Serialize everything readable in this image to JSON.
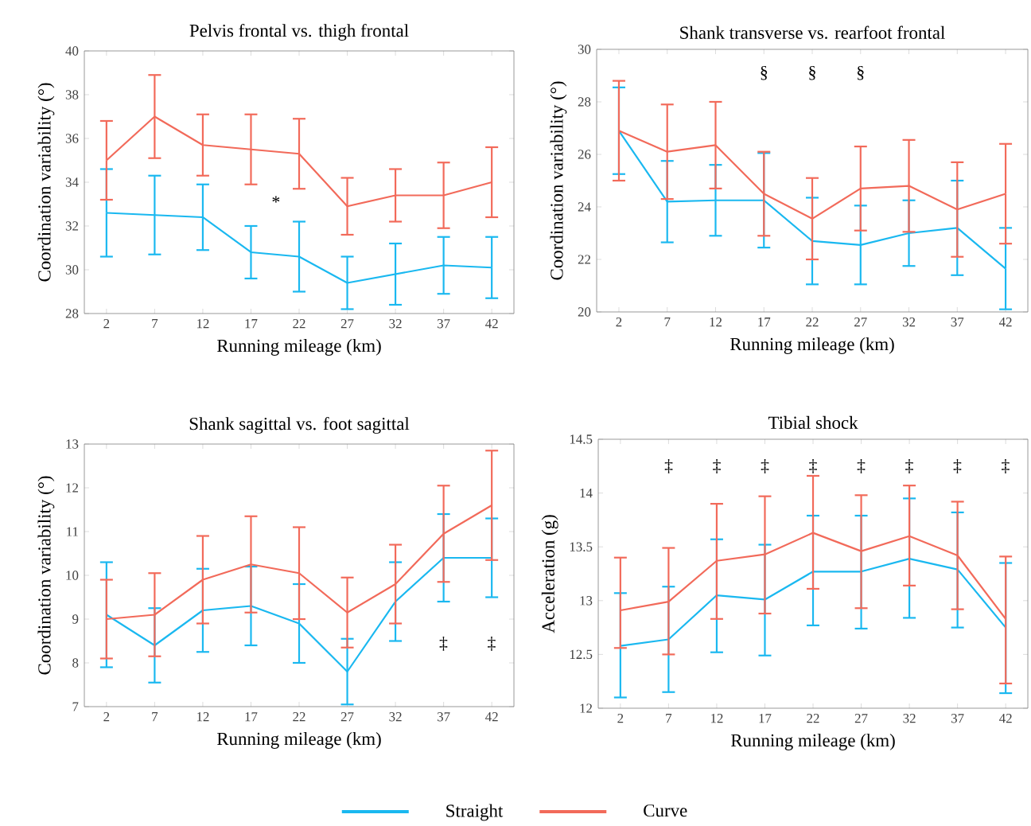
{
  "chart_data": [
    {
      "type": "line",
      "title": "Pelvis frontal vs. thigh frontal",
      "xlabel": "Running mileage (km)",
      "ylabel": "Coordination variability (°)",
      "x": [
        2,
        7,
        12,
        17,
        22,
        27,
        32,
        37,
        42
      ],
      "xlim": [
        -0.3,
        44.3
      ],
      "xticks": [
        2,
        7,
        12,
        17,
        22,
        27,
        32,
        37,
        42
      ],
      "ylim": [
        28,
        40
      ],
      "yticks": [
        28,
        30,
        32,
        34,
        36,
        38,
        40
      ],
      "series": [
        {
          "color": "#1ab8f0",
          "values": [
            32.6,
            32.5,
            32.4,
            30.8,
            30.6,
            29.4,
            29.8,
            30.2,
            30.1
          ],
          "errors": [
            2.0,
            1.8,
            1.5,
            1.2,
            1.6,
            1.2,
            1.4,
            1.3,
            1.4
          ]
        },
        {
          "color": "#f26a5a",
          "values": [
            35.0,
            37.0,
            35.7,
            35.5,
            35.3,
            32.9,
            33.4,
            33.4,
            34.0
          ],
          "errors": [
            1.8,
            1.9,
            1.4,
            1.6,
            1.6,
            1.3,
            1.2,
            1.5,
            1.6
          ]
        }
      ],
      "annotations": [
        "*"
      ]
    },
    {
      "type": "line",
      "title": "Shank transverse vs. rearfoot frontal",
      "xlabel": "Running mileage (km)",
      "ylabel": "Coordination variability (°)",
      "x": [
        2,
        7,
        12,
        17,
        22,
        27,
        32,
        37,
        42
      ],
      "xlim": [
        -0.3,
        44.3
      ],
      "xticks": [
        2,
        7,
        12,
        17,
        22,
        27,
        32,
        37,
        42
      ],
      "ylim": [
        20,
        30
      ],
      "yticks": [
        20,
        22,
        24,
        26,
        28,
        30
      ],
      "series": [
        {
          "color": "#1ab8f0",
          "values": [
            26.9,
            24.2,
            24.25,
            24.25,
            22.7,
            22.55,
            23.0,
            23.2,
            21.65
          ],
          "errors": [
            1.65,
            1.55,
            1.35,
            1.8,
            1.65,
            1.5,
            1.25,
            1.8,
            1.55
          ]
        },
        {
          "color": "#f26a5a",
          "values": [
            26.9,
            26.1,
            26.35,
            24.5,
            23.55,
            24.7,
            24.8,
            23.9,
            24.5
          ],
          "errors": [
            1.9,
            1.8,
            1.65,
            1.6,
            1.55,
            1.6,
            1.75,
            1.8,
            1.9
          ]
        }
      ],
      "annotations": [
        "§",
        "§",
        "§"
      ]
    },
    {
      "type": "line",
      "title": "Shank sagittal vs. foot sagittal",
      "xlabel": "Running mileage (km)",
      "ylabel": "Coordination variability (°)",
      "x": [
        2,
        7,
        12,
        17,
        22,
        27,
        32,
        37,
        42
      ],
      "xlim": [
        -0.3,
        44.3
      ],
      "xticks": [
        2,
        7,
        12,
        17,
        22,
        27,
        32,
        37,
        42
      ],
      "ylim": [
        7,
        13
      ],
      "yticks": [
        7,
        8,
        9,
        10,
        11,
        12,
        13
      ],
      "series": [
        {
          "color": "#1ab8f0",
          "values": [
            9.1,
            8.4,
            9.2,
            9.3,
            8.9,
            7.8,
            9.4,
            10.4,
            10.4
          ],
          "errors": [
            1.2,
            0.85,
            0.95,
            0.9,
            0.9,
            0.75,
            0.9,
            1.0,
            0.9
          ]
        },
        {
          "color": "#f26a5a",
          "values": [
            9.0,
            9.1,
            9.9,
            10.25,
            10.05,
            9.15,
            9.8,
            10.95,
            11.6
          ],
          "errors": [
            0.9,
            0.95,
            1.0,
            1.1,
            1.05,
            0.8,
            0.9,
            1.1,
            1.25
          ]
        }
      ],
      "annotations": [
        "‡",
        "‡"
      ]
    },
    {
      "type": "line",
      "title": "Tibial shock",
      "xlabel": "Running mileage (km)",
      "ylabel": "Acceleration (g)",
      "x": [
        2,
        7,
        12,
        17,
        22,
        27,
        32,
        37,
        42
      ],
      "xlim": [
        -0.3,
        44.3
      ],
      "xticks": [
        2,
        7,
        12,
        17,
        22,
        27,
        32,
        37,
        42
      ],
      "ylim": [
        12,
        14.5
      ],
      "yticks": [
        12,
        12.5,
        13,
        13.5,
        14,
        14.5
      ],
      "legend": "bottom",
      "series": [
        {
          "name": "Straight",
          "color": "#1ab8f0",
          "values": [
            12.58,
            12.64,
            13.05,
            13.01,
            13.27,
            13.27,
            13.39,
            13.29,
            12.75
          ],
          "errors": [
            [
              12.1,
              13.07
            ],
            [
              12.15,
              13.13
            ],
            [
              12.52,
              13.57
            ],
            [
              12.49,
              13.52
            ],
            [
              12.77,
              13.79
            ],
            [
              12.74,
              13.79
            ],
            [
              12.84,
              13.95
            ],
            [
              12.75,
              13.82
            ],
            [
              12.14,
              13.35
            ]
          ]
        },
        {
          "name": "Curve",
          "color": "#f26a5a",
          "values": [
            12.91,
            12.99,
            13.37,
            13.43,
            13.63,
            13.46,
            13.6,
            13.42,
            12.83
          ],
          "errors": [
            [
              12.56,
              13.4
            ],
            [
              12.5,
              13.49
            ],
            [
              12.83,
              13.9
            ],
            [
              12.88,
              13.97
            ],
            [
              13.11,
              14.16
            ],
            [
              12.93,
              13.98
            ],
            [
              13.14,
              14.07
            ],
            [
              12.92,
              13.92
            ],
            [
              12.23,
              13.41
            ]
          ]
        }
      ],
      "annotations": [
        "‡",
        "‡",
        "‡",
        "‡",
        "‡",
        "‡",
        "‡",
        "‡"
      ]
    }
  ]
}
